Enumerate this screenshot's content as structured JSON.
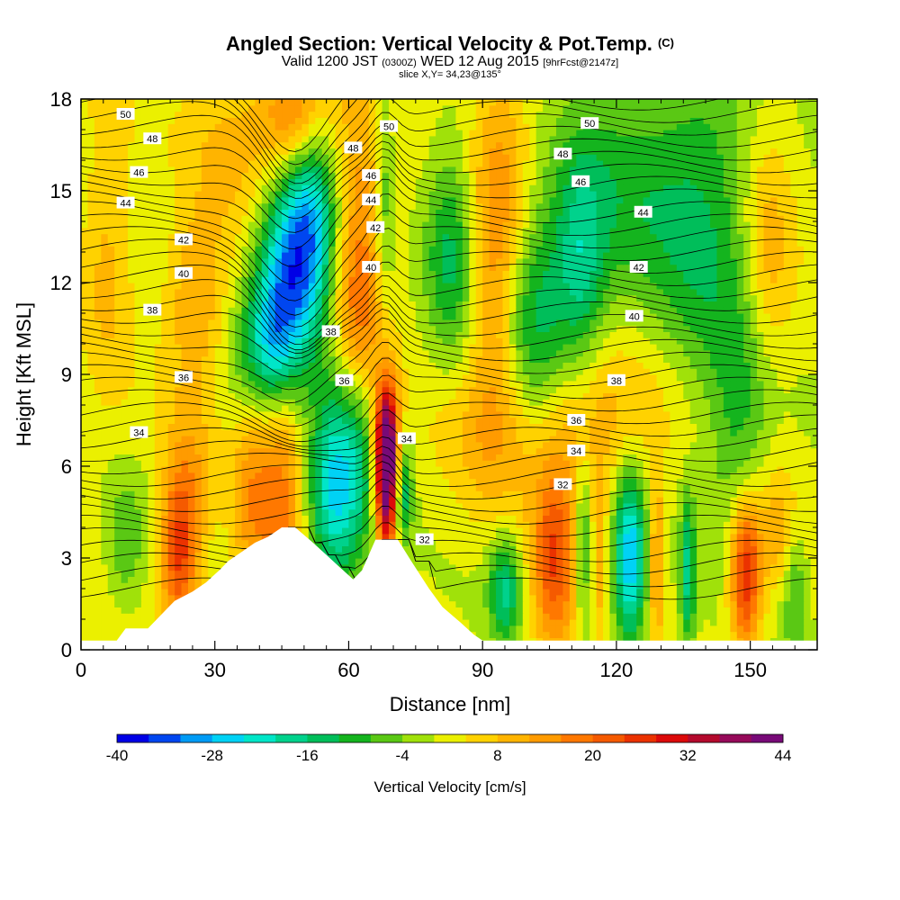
{
  "header": {
    "title": "Angled Section: Vertical Velocity & Pot.Temp.",
    "title_tag": "(C)",
    "valid_prefix": "Valid 1200 JST",
    "valid_zulu": "(0300Z)",
    "valid_date": "WED 12 Aug 2015",
    "forecast_tag": "[9hrFcst@2147z]",
    "slice_info": "slice X,Y= 34,23@135°"
  },
  "chart_data": {
    "type": "heatmap",
    "xlabel": "Distance [nm]",
    "ylabel": "Height [Kft MSL]",
    "xlim": [
      0,
      165
    ],
    "ylim": [
      0,
      18
    ],
    "x_ticks": [
      0,
      30,
      60,
      90,
      120,
      150
    ],
    "y_ticks": [
      0,
      3,
      6,
      9,
      12,
      15,
      18
    ],
    "colorbar": {
      "label": "Vertical Velocity [cm/s]",
      "min": -40,
      "max": 44,
      "step": 4,
      "tick_values": [
        -40,
        -28,
        -16,
        -4,
        8,
        20,
        32,
        44
      ],
      "colors": [
        "#0000e6",
        "#0046f0",
        "#009bf5",
        "#00d2f5",
        "#00e6c8",
        "#00d28c",
        "#00be5a",
        "#14b41e",
        "#5ac814",
        "#a0e10a",
        "#ebf000",
        "#ffd200",
        "#ffb400",
        "#ff9b00",
        "#ff7800",
        "#f55a00",
        "#eb3200",
        "#dc0a0a",
        "#b40a2d",
        "#960a5a",
        "#780a78"
      ]
    },
    "theta_contour_labels": [
      {
        "value": 50,
        "x": 10,
        "y": 17.5
      },
      {
        "value": 48,
        "x": 16,
        "y": 16.7
      },
      {
        "value": 46,
        "x": 13,
        "y": 15.6
      },
      {
        "value": 44,
        "x": 10,
        "y": 14.6
      },
      {
        "value": 42,
        "x": 23,
        "y": 13.4
      },
      {
        "value": 40,
        "x": 23,
        "y": 12.3
      },
      {
        "value": 38,
        "x": 16,
        "y": 11.1
      },
      {
        "value": 36,
        "x": 23,
        "y": 8.9
      },
      {
        "value": 34,
        "x": 13,
        "y": 7.1
      },
      {
        "value": 50,
        "x": 69,
        "y": 17.1
      },
      {
        "value": 48,
        "x": 61,
        "y": 16.4
      },
      {
        "value": 46,
        "x": 65,
        "y": 15.5
      },
      {
        "value": 44,
        "x": 65,
        "y": 14.7
      },
      {
        "value": 42,
        "x": 66,
        "y": 13.8
      },
      {
        "value": 40,
        "x": 65,
        "y": 12.5
      },
      {
        "value": 38,
        "x": 56,
        "y": 10.4
      },
      {
        "value": 36,
        "x": 59,
        "y": 8.8
      },
      {
        "value": 34,
        "x": 73,
        "y": 6.9
      },
      {
        "value": 32,
        "x": 77,
        "y": 3.6
      },
      {
        "value": 50,
        "x": 114,
        "y": 17.2
      },
      {
        "value": 48,
        "x": 108,
        "y": 16.2
      },
      {
        "value": 46,
        "x": 112,
        "y": 15.3
      },
      {
        "value": 44,
        "x": 126,
        "y": 14.3
      },
      {
        "value": 42,
        "x": 125,
        "y": 12.5
      },
      {
        "value": 40,
        "x": 124,
        "y": 10.9
      },
      {
        "value": 38,
        "x": 120,
        "y": 8.8
      },
      {
        "value": 36,
        "x": 111,
        "y": 7.5
      },
      {
        "value": 34,
        "x": 111,
        "y": 6.5
      },
      {
        "value": 32,
        "x": 108,
        "y": 5.4
      }
    ],
    "w_features": [
      {
        "x": 48,
        "y": 12.8,
        "w": -30,
        "sx": 5.5,
        "sy": 2.2
      },
      {
        "x": 44,
        "y": 10.5,
        "w": -16,
        "sx": 4,
        "sy": 1.6
      },
      {
        "x": 40,
        "y": 9.5,
        "w": -10,
        "sx": 5,
        "sy": 1.5
      },
      {
        "x": 52,
        "y": 14.5,
        "w": -14,
        "sx": 4,
        "sy": 2.2
      },
      {
        "x": 48,
        "y": 17.5,
        "w": 18,
        "sx": 5,
        "sy": 1.5
      },
      {
        "x": 63,
        "y": 15.0,
        "w": 12,
        "sx": 5,
        "sy": 3.5
      },
      {
        "x": 62,
        "y": 10.5,
        "w": 14,
        "sx": 4,
        "sy": 2.5
      },
      {
        "x": 68,
        "y": 15.0,
        "w": -12,
        "sx": 1.8,
        "sy": 3
      },
      {
        "x": 60,
        "y": 6.5,
        "w": -20,
        "sx": 5,
        "sy": 2.5
      },
      {
        "x": 56,
        "y": 4.5,
        "w": -14,
        "sx": 4,
        "sy": 2
      },
      {
        "x": 68.5,
        "y": 5.5,
        "w": 44,
        "sx": 1.8,
        "sy": 1.8
      },
      {
        "x": 68.5,
        "y": 7.0,
        "w": 22,
        "sx": 2,
        "sy": 1.5
      },
      {
        "x": 72,
        "y": 5.2,
        "w": -18,
        "sx": 1.5,
        "sy": 1.2
      },
      {
        "x": 45,
        "y": 5.0,
        "w": 16,
        "sx": 3.5,
        "sy": 3
      },
      {
        "x": 38,
        "y": 5.0,
        "w": 12,
        "sx": 3,
        "sy": 2.5
      },
      {
        "x": 22,
        "y": 3.0,
        "w": 22,
        "sx": 3,
        "sy": 1.8
      },
      {
        "x": 24,
        "y": 5.5,
        "w": 10,
        "sx": 4,
        "sy": 2
      },
      {
        "x": 10,
        "y": 3.5,
        "w": -8,
        "sx": 3,
        "sy": 1.5
      },
      {
        "x": 26,
        "y": 11.5,
        "w": 12,
        "sx": 5,
        "sy": 2
      },
      {
        "x": 6,
        "y": 13.5,
        "w": 8,
        "sx": 4,
        "sy": 4
      },
      {
        "x": 35,
        "y": 16.5,
        "w": 8,
        "sx": 8,
        "sy": 2
      },
      {
        "x": 83,
        "y": 13.0,
        "w": -14,
        "sx": 4,
        "sy": 2.5
      },
      {
        "x": 92,
        "y": 11.5,
        "w": 10,
        "sx": 4,
        "sy": 3
      },
      {
        "x": 102,
        "y": 10.5,
        "w": -16,
        "sx": 5,
        "sy": 3
      },
      {
        "x": 112,
        "y": 12.5,
        "w": -16,
        "sx": 4,
        "sy": 2.5
      },
      {
        "x": 122,
        "y": 15.0,
        "w": -10,
        "sx": 10,
        "sy": 3
      },
      {
        "x": 140,
        "y": 14.0,
        "w": -12,
        "sx": 8,
        "sy": 4
      },
      {
        "x": 154,
        "y": 13.0,
        "w": 10,
        "sx": 4,
        "sy": 3
      },
      {
        "x": 95,
        "y": 16.0,
        "w": 10,
        "sx": 5,
        "sy": 3
      },
      {
        "x": 95,
        "y": 7.0,
        "w": 8,
        "sx": 10,
        "sy": 2
      },
      {
        "x": 115,
        "y": 7.5,
        "w": 10,
        "sx": 12,
        "sy": 2
      },
      {
        "x": 148,
        "y": 7.0,
        "w": -10,
        "sx": 5,
        "sy": 3
      },
      {
        "x": 95,
        "y": 2.0,
        "w": -18,
        "sx": 2.5,
        "sy": 1.2
      },
      {
        "x": 106,
        "y": 2.8,
        "w": 22,
        "sx": 3.5,
        "sy": 2.2
      },
      {
        "x": 112.5,
        "y": 3.5,
        "w": -14,
        "sx": 1.2,
        "sy": 2
      },
      {
        "x": 116.5,
        "y": 3.0,
        "w": 8,
        "sx": 1,
        "sy": 2
      },
      {
        "x": 123,
        "y": 3.0,
        "w": -30,
        "sx": 2.5,
        "sy": 2
      },
      {
        "x": 129,
        "y": 3.0,
        "w": 14,
        "sx": 1.2,
        "sy": 2
      },
      {
        "x": 136,
        "y": 2.5,
        "w": -18,
        "sx": 1.2,
        "sy": 1.8
      },
      {
        "x": 149,
        "y": 2.5,
        "w": 30,
        "sx": 2.5,
        "sy": 1.8
      },
      {
        "x": 156,
        "y": 4.0,
        "w": 10,
        "sx": 3,
        "sy": 1.5
      },
      {
        "x": 160,
        "y": 2.0,
        "w": -10,
        "sx": 2,
        "sy": 1.5
      }
    ],
    "terrain": [
      [
        0,
        0.3
      ],
      [
        8,
        0.3
      ],
      [
        10,
        0.7
      ],
      [
        15,
        0.7
      ],
      [
        17,
        1.0
      ],
      [
        19,
        1.3
      ],
      [
        21,
        1.6
      ],
      [
        25,
        1.9
      ],
      [
        28,
        2.2
      ],
      [
        31,
        2.6
      ],
      [
        33,
        2.9
      ],
      [
        36,
        3.2
      ],
      [
        39,
        3.5
      ],
      [
        42,
        3.7
      ],
      [
        45,
        4.0
      ],
      [
        48,
        4.0
      ],
      [
        52,
        3.5
      ],
      [
        55,
        3.1
      ],
      [
        58,
        2.7
      ],
      [
        61,
        2.3
      ],
      [
        63,
        2.6
      ],
      [
        66,
        3.6
      ],
      [
        71,
        3.6
      ],
      [
        74,
        2.9
      ],
      [
        78,
        2.0
      ],
      [
        81,
        1.4
      ],
      [
        85,
        0.9
      ],
      [
        88,
        0.5
      ],
      [
        90,
        0.3
      ],
      [
        165,
        0.3
      ]
    ]
  }
}
